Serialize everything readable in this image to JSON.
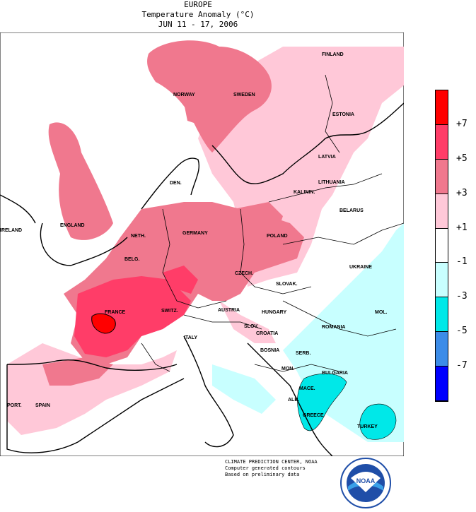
{
  "header": {
    "line1": "EUROPE",
    "line2": "Temperature Anomaly (°C)",
    "line3": "JUN 11 - 17, 2006"
  },
  "legend": {
    "labels": [
      "+7",
      "+5",
      "+3",
      "+1",
      "-1",
      "-3",
      "-5",
      "-7"
    ],
    "colors": [
      "#ff0000",
      "#ff3d68",
      "#f0788e",
      "#ffc8d8",
      "#ffffff",
      "#c8ffff",
      "#00e8e8",
      "#3c8ce8",
      "#0000ff"
    ]
  },
  "countries": [
    {
      "name": "FINLAND"
    },
    {
      "name": "NORWAY"
    },
    {
      "name": "SWEDEN"
    },
    {
      "name": "ESTONIA"
    },
    {
      "name": "LATVIA"
    },
    {
      "name": "LITHUANIA"
    },
    {
      "name": "DEN."
    },
    {
      "name": "KALININ."
    },
    {
      "name": "BELARUS"
    },
    {
      "name": "IRELAND"
    },
    {
      "name": "ENGLAND"
    },
    {
      "name": "NETH."
    },
    {
      "name": "GERMANY"
    },
    {
      "name": "POLAND"
    },
    {
      "name": "BELG."
    },
    {
      "name": "CZECH."
    },
    {
      "name": "UKRAINE"
    },
    {
      "name": "SLOVAK."
    },
    {
      "name": "FRANCE"
    },
    {
      "name": "SWITZ."
    },
    {
      "name": "AUSTRIA"
    },
    {
      "name": "HUNGARY"
    },
    {
      "name": "MOL."
    },
    {
      "name": "SLOV."
    },
    {
      "name": "ROMANIA"
    },
    {
      "name": "CROATIA"
    },
    {
      "name": "ITALY"
    },
    {
      "name": "BOSNIA"
    },
    {
      "name": "SERB."
    },
    {
      "name": "MON."
    },
    {
      "name": "BULGARIA"
    },
    {
      "name": "MACE."
    },
    {
      "name": "ALB."
    },
    {
      "name": "GREECE"
    },
    {
      "name": "PORT."
    },
    {
      "name": "SPAIN"
    },
    {
      "name": "TURKEY"
    }
  ],
  "credits": {
    "line1": "CLIMATE PREDICTION CENTER, NOAA",
    "line2": "Computer generated contours",
    "line3": "Based on preliminary data",
    "logo_text": "NOAA"
  }
}
